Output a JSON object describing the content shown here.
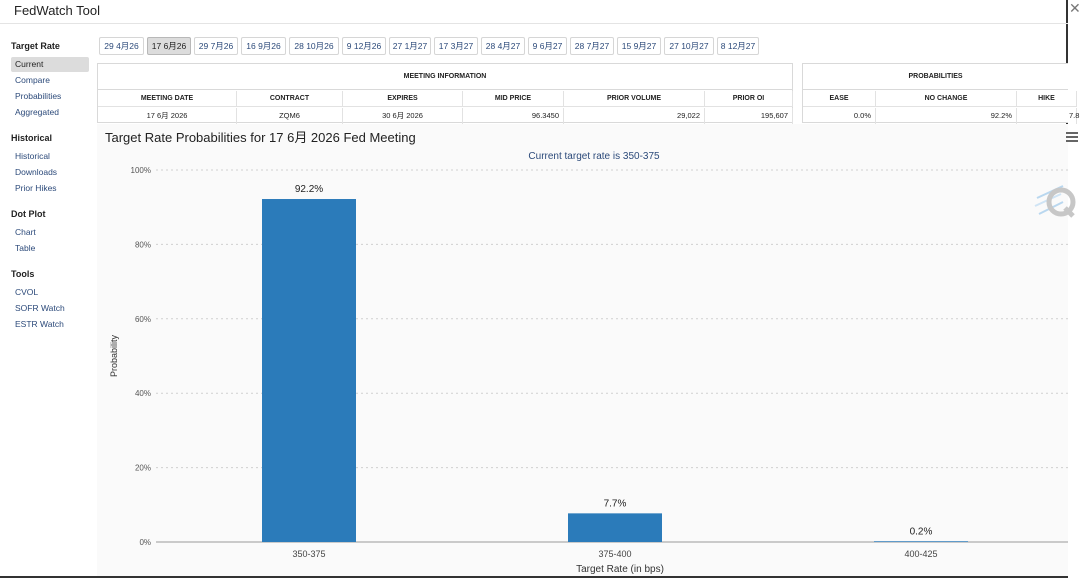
{
  "window": {
    "title": "FedWatch Tool"
  },
  "sidebar": {
    "sections": [
      {
        "heading": "Target Rate",
        "items": [
          "Current",
          "Compare",
          "Probabilities",
          "Aggregated"
        ]
      },
      {
        "heading": "Historical",
        "items": [
          "Historical",
          "Downloads",
          "Prior Hikes"
        ]
      },
      {
        "heading": "Dot Plot",
        "items": [
          "Chart",
          "Table"
        ]
      },
      {
        "heading": "Tools",
        "items": [
          "CVOL",
          "SOFR Watch",
          "ESTR Watch"
        ]
      }
    ],
    "active_item": "Current"
  },
  "meeting_tabs": {
    "items": [
      "29 4月26",
      "17 6月26",
      "29 7月26",
      "16 9月26",
      "28 10月26",
      "9 12月26",
      "27 1月27",
      "17 3月27",
      "28 4月27",
      "9 6月27",
      "28 7月27",
      "15 9月27",
      "27 10月27",
      "8 12月27"
    ],
    "active_index": 1
  },
  "meeting_info": {
    "title": "MEETING INFORMATION",
    "headers": [
      "MEETING DATE",
      "CONTRACT",
      "EXPIRES",
      "MID PRICE",
      "PRIOR VOLUME",
      "PRIOR OI"
    ],
    "row": [
      "17 6月 2026",
      "ZQM6",
      "30 6月 2026",
      "96.3450",
      "29,022",
      "195,607"
    ]
  },
  "probabilities": {
    "title": "PROBABILITIES",
    "headers": [
      "EASE",
      "NO CHANGE",
      "HIKE"
    ],
    "row": [
      "0.0%",
      "92.2%",
      "7.8"
    ]
  },
  "chart": {
    "title": "Target Rate Probabilities for 17 6月 2026 Fed Meeting",
    "subtitle": "Current target rate is 350-375"
  },
  "chart_data": {
    "type": "bar",
    "title": "Target Rate Probabilities for 17 6月 2026 Fed Meeting",
    "subtitle": "Current target rate is 350-375",
    "categories": [
      "350-375",
      "375-400",
      "400-425"
    ],
    "values": [
      92.2,
      7.7,
      0.2
    ],
    "data_labels": [
      "92.2%",
      "7.7%",
      "0.2%"
    ],
    "xlabel": "Target Rate (in bps)",
    "ylabel": "Probability",
    "ylim": [
      0,
      100
    ],
    "yticks": [
      0,
      20,
      40,
      60,
      80,
      100
    ],
    "ytick_labels": [
      "0%",
      "20%",
      "40%",
      "60%",
      "80%",
      "100%"
    ],
    "grid": true,
    "bar_color": "#2b7bba"
  },
  "colors": {
    "accent": "#2b7bba",
    "link": "#2c4a7a",
    "active_bg": "#dcdcdc"
  }
}
